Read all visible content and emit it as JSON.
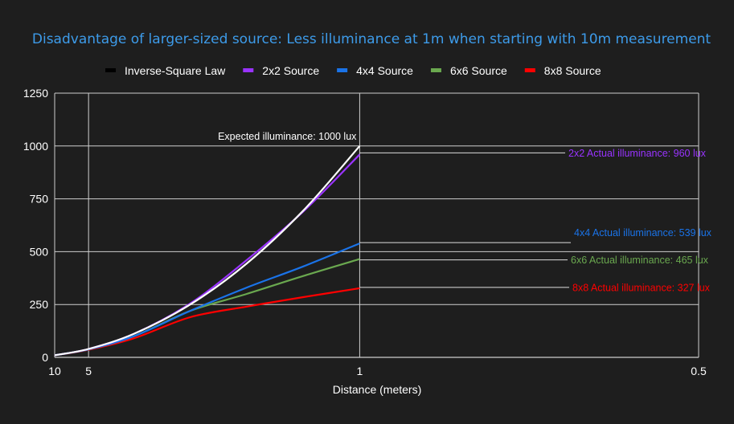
{
  "chart_data": {
    "type": "line",
    "title": "Disadvantage of larger-sized source: Less illuminance at 1m when starting with 10m measurement",
    "xlabel": "Distance (meters)",
    "ylabel": "",
    "x_scale": "reciprocal",
    "x_ticks": [
      10,
      5,
      1,
      0.5
    ],
    "x_tick_labels": [
      "10",
      "5",
      "1",
      "0.5"
    ],
    "xlim": [
      10,
      0.5
    ],
    "ylim": [
      0,
      1250
    ],
    "y_ticks": [
      0,
      250,
      500,
      750,
      1000,
      1250
    ],
    "y_tick_labels": [
      "0",
      "250",
      "500",
      "750",
      "1000",
      "1250"
    ],
    "grid": true,
    "legend_position": "top",
    "x": [
      10,
      5,
      3,
      2,
      1.5,
      1.2,
      1
    ],
    "series": [
      {
        "name": "Inverse-Square Law",
        "color": "#ffffff",
        "legend_color": "#000000",
        "values": [
          10,
          40,
          111,
          250,
          444,
          694,
          1000
        ]
      },
      {
        "name": "2x2 Source",
        "color": "#9933ff",
        "values": [
          10,
          40,
          111,
          255,
          460,
          690,
          960
        ]
      },
      {
        "name": "4x4 Source",
        "color": "#1a73e8",
        "values": [
          10,
          38,
          100,
          220,
          330,
          430,
          539
        ]
      },
      {
        "name": "6x6 Source",
        "color": "#6aa84f",
        "values": [
          10,
          38,
          100,
          220,
          300,
          385,
          465
        ]
      },
      {
        "name": "8x8 Source",
        "color": "#ff0000",
        "values": [
          10,
          36,
          90,
          190,
          240,
          285,
          327
        ]
      }
    ],
    "annotations": [
      {
        "text": "Expected illuminance: 1000 lux",
        "color": "#ffffff",
        "x": 1,
        "y": 1000
      },
      {
        "text": "2x2 Actual illuminance: 960 lux",
        "color": "#9933ff",
        "x": 1,
        "y": 960
      },
      {
        "text": "4x4 Actual illuminance: 539 lux",
        "color": "#1a73e8",
        "x": 1,
        "y": 539
      },
      {
        "text": "6x6 Actual illuminance: 465 lux",
        "color": "#6aa84f",
        "x": 1,
        "y": 465
      },
      {
        "text": "8x8 Actual illuminance: 327 lux",
        "color": "#ff0000",
        "x": 1,
        "y": 327
      }
    ]
  }
}
